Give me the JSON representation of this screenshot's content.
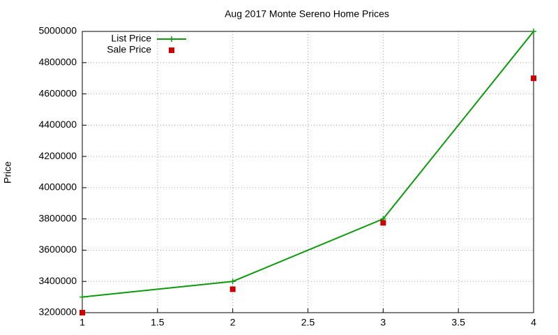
{
  "chart_data": {
    "type": "line",
    "title": "Aug 2017 Monte Sereno Home Prices",
    "y_label": "Price",
    "x": [
      1,
      2,
      3,
      4
    ],
    "series": [
      {
        "name": "List Price",
        "color": "#0a9a0a",
        "style": "linespoints",
        "values": [
          3300000,
          3400000,
          3800000,
          5000000
        ]
      },
      {
        "name": "Sale Price",
        "color": "#c80000",
        "style": "points",
        "values": [
          3200000,
          3350000,
          3775000,
          4700000
        ]
      }
    ],
    "xlim": [
      1,
      4
    ],
    "xticks": [
      1,
      1.5,
      2,
      2.5,
      3,
      3.5,
      4
    ],
    "ylim": [
      3200000,
      5000000
    ],
    "yticks": [
      3200000,
      3400000,
      3600000,
      3800000,
      4000000,
      4200000,
      4400000,
      4600000,
      4800000,
      5000000
    ],
    "grid": true,
    "legend": "top-left"
  }
}
